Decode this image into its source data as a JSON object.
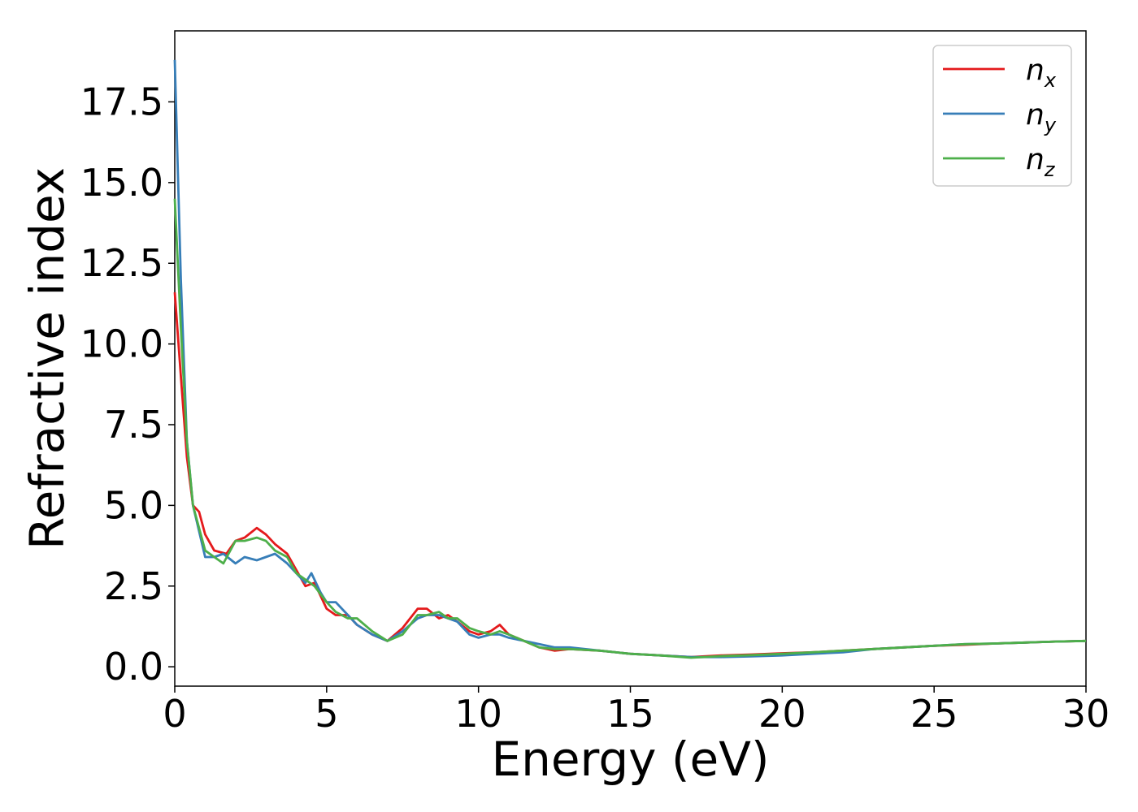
{
  "chart_data": {
    "type": "line",
    "xlabel": "Energy (eV)",
    "ylabel": "Refractive index",
    "xlim": [
      0,
      30
    ],
    "ylim": [
      -0.6,
      19.7
    ],
    "xticks": [
      0,
      5,
      10,
      15,
      20,
      25,
      30
    ],
    "xtick_labels": [
      "0",
      "5",
      "10",
      "15",
      "20",
      "25",
      "30"
    ],
    "yticks": [
      0,
      2.5,
      5,
      7.5,
      10,
      12.5,
      15,
      17.5
    ],
    "ytick_labels": [
      "0.0",
      "2.5",
      "5.0",
      "7.5",
      "10.0",
      "12.5",
      "15.0",
      "17.5"
    ],
    "grid": false,
    "legend_position": "top-right",
    "series": [
      {
        "name": "n",
        "subscript": "x",
        "color": "#e41a1c",
        "x": [
          0,
          0.2,
          0.4,
          0.6,
          0.8,
          1.0,
          1.3,
          1.7,
          2.0,
          2.3,
          2.7,
          3.0,
          3.3,
          3.7,
          4.0,
          4.3,
          4.6,
          5.0,
          5.3,
          5.7,
          6.0,
          6.5,
          7.0,
          7.5,
          8.0,
          8.3,
          8.7,
          9.0,
          9.3,
          9.7,
          10.0,
          10.4,
          10.7,
          11.0,
          11.5,
          12.0,
          12.5,
          13.0,
          14.0,
          15.0,
          16.0,
          17.0,
          18.0,
          19.0,
          20.0,
          21.0,
          22.0,
          23.0,
          24.0,
          25.0,
          26.0,
          27.0,
          28.0,
          29.0,
          30.0
        ],
        "y": [
          11.6,
          9.0,
          6.5,
          5.0,
          4.8,
          4.1,
          3.6,
          3.5,
          3.9,
          4.0,
          4.3,
          4.1,
          3.8,
          3.5,
          3.0,
          2.5,
          2.6,
          1.8,
          1.6,
          1.6,
          1.3,
          1.0,
          0.8,
          1.2,
          1.8,
          1.8,
          1.5,
          1.6,
          1.4,
          1.1,
          1.0,
          1.1,
          1.3,
          1.0,
          0.8,
          0.6,
          0.5,
          0.55,
          0.5,
          0.4,
          0.35,
          0.3,
          0.35,
          0.38,
          0.42,
          0.45,
          0.5,
          0.55,
          0.6,
          0.65,
          0.68,
          0.72,
          0.75,
          0.78,
          0.8
        ]
      },
      {
        "name": "n",
        "subscript": "y",
        "color": "#377eb8",
        "x": [
          0,
          0.2,
          0.4,
          0.6,
          0.8,
          1.0,
          1.3,
          1.6,
          2.0,
          2.3,
          2.7,
          3.0,
          3.3,
          3.7,
          4.0,
          4.3,
          4.5,
          4.8,
          5.0,
          5.3,
          5.7,
          6.0,
          6.5,
          7.0,
          7.5,
          8.0,
          8.3,
          8.7,
          9.0,
          9.3,
          9.7,
          10.0,
          10.4,
          10.7,
          11.0,
          11.5,
          12.0,
          12.5,
          13.0,
          14.0,
          15.0,
          16.0,
          17.0,
          18.0,
          19.0,
          20.0,
          21.0,
          22.0,
          23.0,
          24.0,
          25.0,
          26.0,
          27.0,
          28.0,
          29.0,
          30.0
        ],
        "y": [
          18.8,
          12.0,
          7.0,
          5.0,
          4.2,
          3.4,
          3.4,
          3.5,
          3.2,
          3.4,
          3.3,
          3.4,
          3.5,
          3.2,
          2.9,
          2.6,
          2.9,
          2.3,
          2.0,
          2.0,
          1.6,
          1.3,
          1.0,
          0.8,
          1.1,
          1.5,
          1.6,
          1.6,
          1.5,
          1.4,
          1.0,
          0.9,
          1.0,
          1.0,
          0.9,
          0.8,
          0.7,
          0.6,
          0.6,
          0.5,
          0.4,
          0.35,
          0.3,
          0.3,
          0.32,
          0.35,
          0.4,
          0.45,
          0.55,
          0.6,
          0.65,
          0.7,
          0.72,
          0.75,
          0.78,
          0.8
        ]
      },
      {
        "name": "n",
        "subscript": "z",
        "color": "#4daf4a",
        "x": [
          0,
          0.2,
          0.4,
          0.6,
          0.8,
          1.0,
          1.3,
          1.6,
          2.0,
          2.3,
          2.7,
          3.0,
          3.3,
          3.7,
          4.0,
          4.3,
          4.6,
          5.0,
          5.3,
          5.7,
          6.0,
          6.5,
          7.0,
          7.5,
          8.0,
          8.3,
          8.7,
          9.0,
          9.3,
          9.7,
          10.0,
          10.4,
          10.7,
          11.0,
          11.5,
          12.0,
          12.5,
          13.0,
          14.0,
          15.0,
          16.0,
          17.0,
          18.0,
          19.0,
          20.0,
          21.0,
          22.0,
          23.0,
          24.0,
          25.0,
          26.0,
          27.0,
          28.0,
          29.0,
          30.0
        ],
        "y": [
          14.5,
          10.5,
          7.0,
          5.0,
          4.3,
          3.6,
          3.4,
          3.2,
          3.9,
          3.9,
          4.0,
          3.9,
          3.6,
          3.4,
          2.9,
          2.7,
          2.5,
          2.0,
          1.7,
          1.5,
          1.5,
          1.1,
          0.8,
          1.0,
          1.6,
          1.6,
          1.7,
          1.5,
          1.5,
          1.2,
          1.1,
          1.0,
          1.1,
          1.0,
          0.8,
          0.6,
          0.55,
          0.55,
          0.5,
          0.4,
          0.35,
          0.28,
          0.33,
          0.36,
          0.4,
          0.45,
          0.5,
          0.55,
          0.6,
          0.65,
          0.7,
          0.72,
          0.75,
          0.78,
          0.8
        ]
      }
    ]
  }
}
